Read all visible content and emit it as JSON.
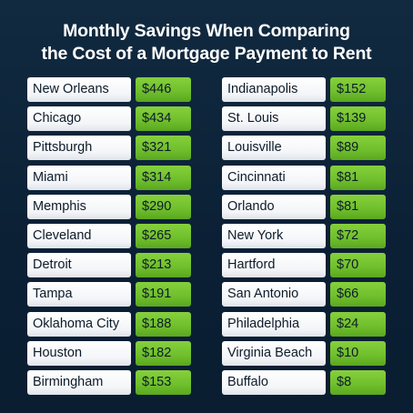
{
  "title_line1": "Monthly Savings When Comparing",
  "title_line2": "the Cost of a Mortgage Payment to Rent",
  "colors": {
    "background": "#0b2035",
    "accent_green": "#6fbe2c",
    "cell_white": "#f3f5f8"
  },
  "chart_data": {
    "type": "table",
    "columns": [
      [
        {
          "city": "New Orleans",
          "value": "$446"
        },
        {
          "city": "Chicago",
          "value": "$434"
        },
        {
          "city": "Pittsburgh",
          "value": "$321"
        },
        {
          "city": "Miami",
          "value": "$314"
        },
        {
          "city": "Memphis",
          "value": "$290"
        },
        {
          "city": "Cleveland",
          "value": "$265"
        },
        {
          "city": "Detroit",
          "value": "$213"
        },
        {
          "city": "Tampa",
          "value": "$191"
        },
        {
          "city": "Oklahoma City",
          "value": "$188"
        },
        {
          "city": "Houston",
          "value": "$182"
        },
        {
          "city": "Birmingham",
          "value": "$153"
        }
      ],
      [
        {
          "city": "Indianapolis",
          "value": "$152"
        },
        {
          "city": "St. Louis",
          "value": "$139"
        },
        {
          "city": "Louisville",
          "value": "$89"
        },
        {
          "city": "Cincinnati",
          "value": "$81"
        },
        {
          "city": "Orlando",
          "value": "$81"
        },
        {
          "city": "New York",
          "value": "$72"
        },
        {
          "city": "Hartford",
          "value": "$70"
        },
        {
          "city": "San Antonio",
          "value": "$66"
        },
        {
          "city": "Philadelphia",
          "value": "$24"
        },
        {
          "city": "Virginia Beach",
          "value": "$10"
        },
        {
          "city": "Buffalo",
          "value": "$8"
        }
      ]
    ]
  }
}
